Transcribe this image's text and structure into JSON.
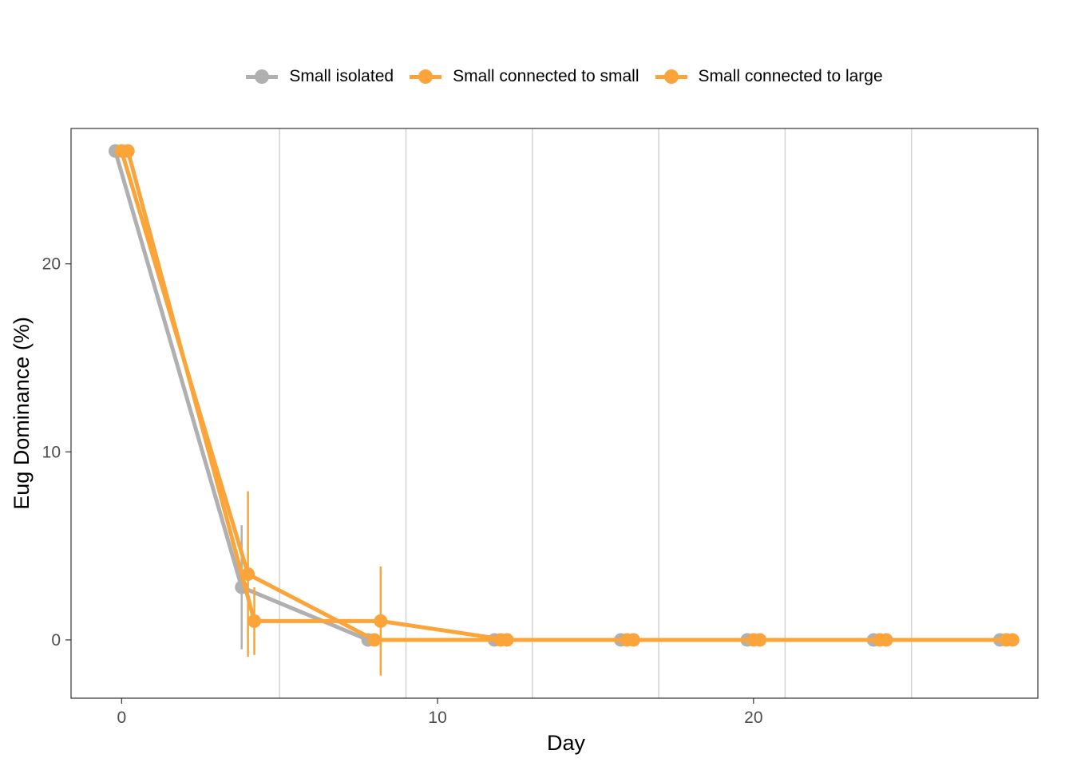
{
  "chart_data": {
    "type": "line",
    "xlabel": "Day",
    "ylabel": "Eug Dominance (%)",
    "xlim": [
      -1.6,
      29.0
    ],
    "ylim": [
      -3.1,
      27.2
    ],
    "x_ticks": [
      0,
      10,
      20
    ],
    "y_ticks": [
      0,
      10,
      20
    ],
    "grid": "vertical minor lines",
    "legend_position": "top",
    "series": [
      {
        "name": "Small isolated",
        "color": "#b0b0b0",
        "x": [
          -0.2,
          3.8,
          7.8,
          11.8,
          15.8,
          19.8,
          23.8,
          27.8
        ],
        "y": [
          26.0,
          2.8,
          0.0,
          0.0,
          0.0,
          0.0,
          0.0,
          0.0
        ],
        "error": [
          null,
          3.3,
          null,
          null,
          null,
          null,
          null,
          null
        ]
      },
      {
        "name": "Small connected to small",
        "color": "#faa43a",
        "x": [
          0.0,
          4.0,
          8.0,
          12.0,
          16.0,
          20.0,
          24.0,
          28.0
        ],
        "y": [
          26.0,
          3.5,
          0.0,
          0.0,
          0.0,
          0.0,
          0.0,
          0.0
        ],
        "error": [
          null,
          4.4,
          null,
          null,
          null,
          null,
          null,
          null
        ]
      },
      {
        "name": "Small connected to large",
        "color": "#faa43a",
        "x": [
          0.2,
          4.2,
          8.2,
          12.2,
          16.2,
          20.2,
          24.2,
          28.2
        ],
        "y": [
          26.0,
          1.0,
          1.0,
          0.0,
          0.0,
          0.0,
          0.0,
          0.0
        ],
        "error": [
          null,
          1.8,
          2.9,
          null,
          null,
          null,
          null,
          null
        ]
      }
    ]
  }
}
